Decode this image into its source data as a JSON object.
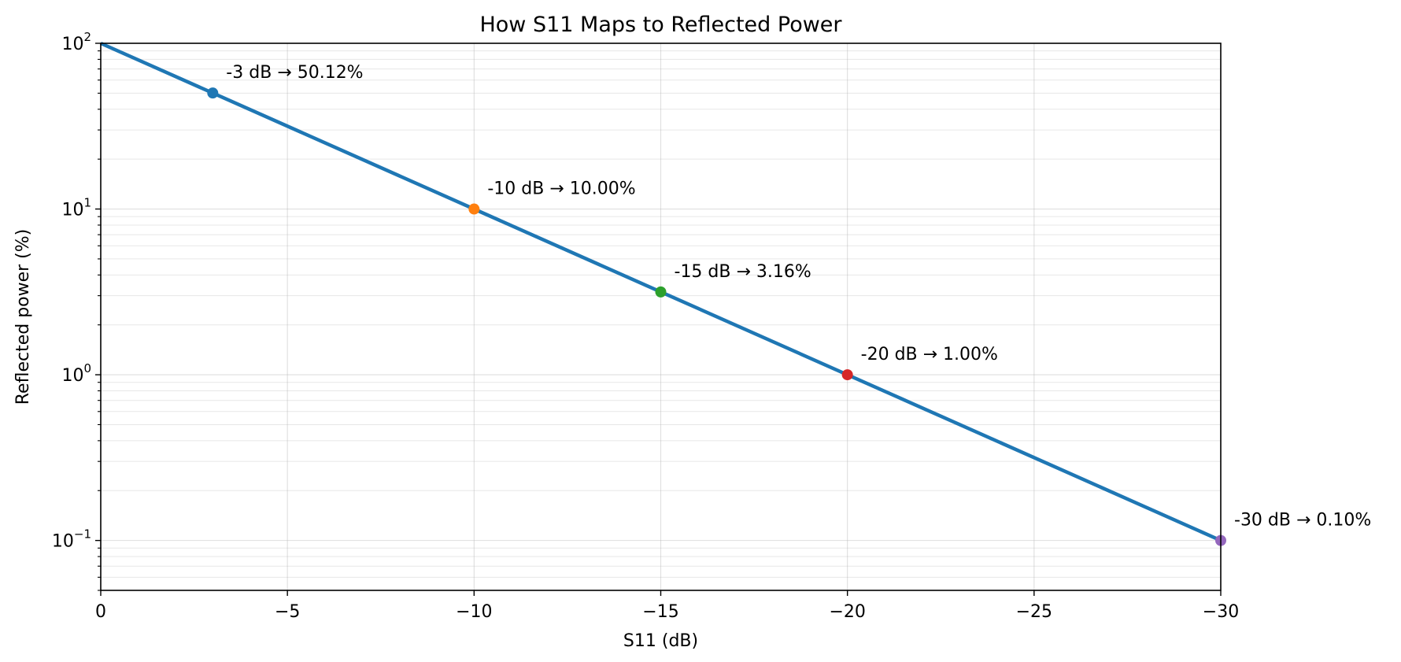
{
  "chart_data": {
    "type": "line",
    "title": "How S11 Maps to Reflected Power",
    "xlabel": "S11 (dB)",
    "ylabel": "Reflected power (%)",
    "xlim": [
      0,
      -30
    ],
    "ylim": [
      0.05,
      100
    ],
    "yscale": "log",
    "grid": true,
    "x_ticks": [
      0,
      -5,
      -10,
      -15,
      -20,
      -25,
      -30
    ],
    "x_tick_labels": [
      "0",
      "−5",
      "−10",
      "−15",
      "−20",
      "−25",
      "−30"
    ],
    "y_ticks": [
      {
        "value": 100,
        "base": "10",
        "exp": "2"
      },
      {
        "value": 10,
        "base": "10",
        "exp": "1"
      },
      {
        "value": 1,
        "base": "10",
        "exp": "0"
      },
      {
        "value": 0.1,
        "base": "10",
        "exp": "−1"
      }
    ],
    "series": [
      {
        "color": "#1f77b4",
        "x": [
          0,
          -30
        ],
        "y": [
          100,
          0.1
        ]
      }
    ],
    "points": [
      {
        "x": -3,
        "y": 50.12,
        "color": "#1f77b4",
        "label": "-3 dB → 50.12%"
      },
      {
        "x": -10,
        "y": 10.0,
        "color": "#ff7f0e",
        "label": "-10 dB → 10.00%"
      },
      {
        "x": -15,
        "y": 3.16,
        "color": "#2ca02c",
        "label": "-15 dB → 3.16%"
      },
      {
        "x": -20,
        "y": 1.0,
        "color": "#d62728",
        "label": "-20 dB → 1.00%"
      },
      {
        "x": -30,
        "y": 0.1,
        "color": "#9467bd",
        "label": "-30 dB → 0.10%"
      }
    ]
  }
}
